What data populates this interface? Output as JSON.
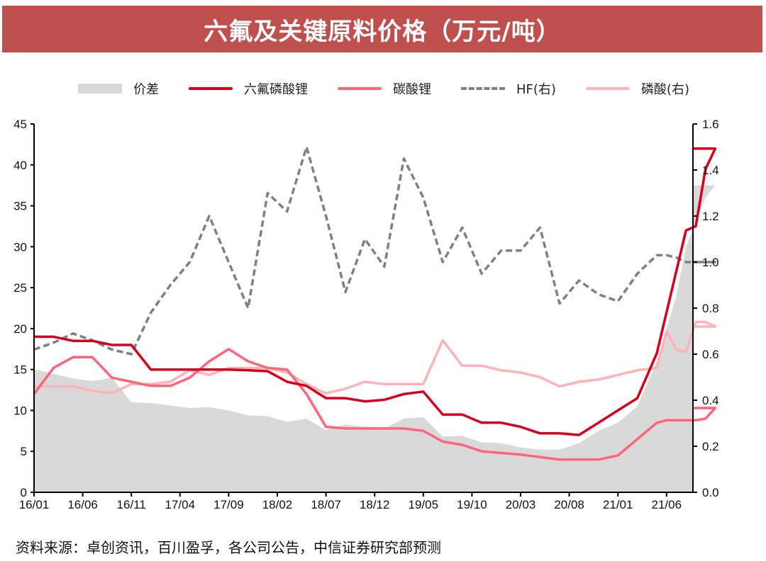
{
  "title": "六氟及关键原料价格（万元/吨）",
  "legend": [
    {
      "label": "价差",
      "type": "area",
      "color": "#d9d9d9"
    },
    {
      "label": "六氟磷酸锂",
      "type": "line",
      "color": "#d9001b"
    },
    {
      "label": "碳酸锂",
      "type": "line",
      "color": "#ff6479"
    },
    {
      "label": "HF(右)",
      "type": "dash",
      "color": "#808080"
    },
    {
      "label": "磷酸(右)",
      "type": "line",
      "color": "#ffb3b8"
    }
  ],
  "source": "资料来源：卓创资讯，百川盈孚，各公司公告，中信证券研究部预测",
  "chart_data": {
    "type": "line",
    "title": "六氟及关键原料价格（万元/吨）",
    "xlabel": "",
    "ylabel": "万元/吨",
    "x_ticks": [
      "16/01",
      "16/06",
      "16/11",
      "17/04",
      "17/09",
      "18/02",
      "18/07",
      "18/12",
      "19/05",
      "19/10",
      "20/03",
      "20/08",
      "21/01",
      "21/06"
    ],
    "y_left": {
      "range": [
        0,
        45
      ],
      "ticks": [
        0,
        5,
        10,
        15,
        20,
        25,
        30,
        35,
        40,
        45
      ]
    },
    "y_right": {
      "range": [
        0.0,
        1.6
      ],
      "ticks": [
        "0.0",
        "0.2",
        "0.4",
        "0.6",
        "0.8",
        "1.0",
        "1.2",
        "1.4",
        "1.6"
      ]
    },
    "grid": false,
    "legend_position": "top",
    "x_month_index": [
      0,
      2,
      4,
      6,
      8,
      10,
      12,
      14,
      16,
      18,
      20,
      22,
      24,
      26,
      28,
      30,
      32,
      34,
      36,
      38,
      40,
      42,
      44,
      46,
      48,
      50,
      52,
      54,
      56,
      58,
      60,
      62,
      64,
      65,
      66,
      67,
      68,
      69,
      70
    ],
    "series": [
      {
        "name": "价差",
        "axis": "left",
        "type": "area",
        "values": [
          15.0,
          14.5,
          13.9,
          13.6,
          14.0,
          11.0,
          10.9,
          10.6,
          10.3,
          10.4,
          10.0,
          9.4,
          9.3,
          8.6,
          9.0,
          7.6,
          8.3,
          8.0,
          7.8,
          9.0,
          9.2,
          6.8,
          6.9,
          6.1,
          6.0,
          5.5,
          5.2,
          5.2,
          6.0,
          7.5,
          8.5,
          10.5,
          16.0,
          20.0,
          24.0,
          30.0,
          33.0,
          36.0,
          37.5
        ]
      },
      {
        "name": "六氟磷酸锂",
        "axis": "left",
        "type": "line",
        "values": [
          19.0,
          19.0,
          18.5,
          18.5,
          18.0,
          18.0,
          15.0,
          15.0,
          15.0,
          15.0,
          15.0,
          14.9,
          14.8,
          13.5,
          13.0,
          11.5,
          11.5,
          11.1,
          11.3,
          12.0,
          12.3,
          9.5,
          9.5,
          8.5,
          8.5,
          8.0,
          7.2,
          7.2,
          7.0,
          8.5,
          10.0,
          11.5,
          17.0,
          22.0,
          27.0,
          32.0,
          32.5,
          39.5,
          42.0
        ]
      },
      {
        "name": "碳酸锂",
        "axis": "left",
        "type": "line",
        "values": [
          12.0,
          15.2,
          16.5,
          16.5,
          14.0,
          13.5,
          13.0,
          13.0,
          14.0,
          16.0,
          17.5,
          16.0,
          15.2,
          15.0,
          12.0,
          8.0,
          7.8,
          7.8,
          7.8,
          7.8,
          7.5,
          6.2,
          5.8,
          5.0,
          4.8,
          4.6,
          4.3,
          4.0,
          4.0,
          4.0,
          4.5,
          6.5,
          8.5,
          8.8,
          8.8,
          8.8,
          8.8,
          9.0,
          10.3
        ]
      },
      {
        "name": "HF(右)",
        "axis": "right",
        "type": "dash",
        "values": [
          0.62,
          0.65,
          0.69,
          0.66,
          0.62,
          0.6,
          0.78,
          0.9,
          1.0,
          1.2,
          1.0,
          0.8,
          1.3,
          1.22,
          1.5,
          1.2,
          0.87,
          1.1,
          0.98,
          1.45,
          1.28,
          1.0,
          1.15,
          0.95,
          1.05,
          1.05,
          1.15,
          0.82,
          0.92,
          0.86,
          0.83,
          0.95,
          1.03,
          1.03,
          1.02,
          1.0,
          1.0,
          1.0,
          1.0
        ]
      },
      {
        "name": "磷酸(右)",
        "axis": "right",
        "type": "line",
        "values": [
          0.46,
          0.46,
          0.46,
          0.44,
          0.43,
          0.47,
          0.47,
          0.48,
          0.53,
          0.51,
          0.54,
          0.54,
          0.54,
          0.52,
          0.47,
          0.43,
          0.45,
          0.48,
          0.47,
          0.47,
          0.47,
          0.66,
          0.55,
          0.55,
          0.53,
          0.52,
          0.5,
          0.46,
          0.48,
          0.49,
          0.51,
          0.53,
          0.54,
          0.7,
          0.62,
          0.61,
          0.74,
          0.74,
          0.72
        ]
      }
    ]
  }
}
